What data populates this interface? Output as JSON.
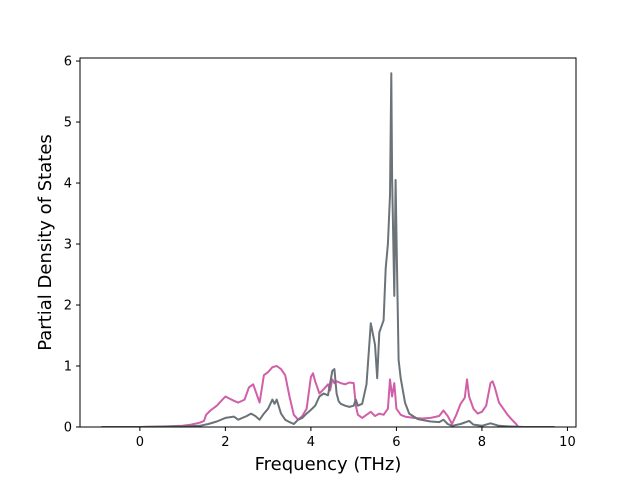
{
  "chart_data": {
    "type": "line",
    "title": "",
    "xlabel": "Frequency (THz)",
    "ylabel": "Partial Density of States",
    "xlim": [
      -1.4,
      10.2
    ],
    "ylim": [
      0,
      6.05
    ],
    "xticks": [
      0,
      2,
      4,
      6,
      8,
      10
    ],
    "yticks": [
      0,
      1,
      2,
      3,
      4,
      5,
      6
    ],
    "grid": false,
    "legend": "none",
    "series": [
      {
        "color": "#d15fa8",
        "x": [
          -0.9,
          0.0,
          0.6,
          1.0,
          1.2,
          1.4,
          1.5,
          1.55,
          1.65,
          1.8,
          2.0,
          2.2,
          2.3,
          2.45,
          2.55,
          2.65,
          2.8,
          2.9,
          3.0,
          3.1,
          3.2,
          3.3,
          3.4,
          3.5,
          3.6,
          3.7,
          3.8,
          3.9,
          4.0,
          4.05,
          4.1,
          4.2,
          4.3,
          4.4,
          4.45,
          4.5,
          4.55,
          4.6,
          4.7,
          4.8,
          4.9,
          5.0,
          5.05,
          5.1,
          5.2,
          5.3,
          5.4,
          5.5,
          5.6,
          5.7,
          5.8,
          5.85,
          5.9,
          5.95,
          6.0,
          6.1,
          6.2,
          6.4,
          6.6,
          6.8,
          7.0,
          7.1,
          7.2,
          7.3,
          7.4,
          7.5,
          7.6,
          7.65,
          7.7,
          7.8,
          7.9,
          8.0,
          8.1,
          8.2,
          8.25,
          8.3,
          8.4,
          8.5,
          8.6,
          8.7,
          8.8,
          8.85
        ],
        "y": [
          0.0,
          0.0,
          0.01,
          0.02,
          0.04,
          0.07,
          0.1,
          0.2,
          0.27,
          0.35,
          0.5,
          0.43,
          0.4,
          0.45,
          0.65,
          0.7,
          0.4,
          0.85,
          0.9,
          0.98,
          1.0,
          0.95,
          0.85,
          0.5,
          0.2,
          0.12,
          0.18,
          0.3,
          0.82,
          0.88,
          0.75,
          0.55,
          0.62,
          0.7,
          0.6,
          0.78,
          0.72,
          0.75,
          0.72,
          0.7,
          0.73,
          0.72,
          0.35,
          0.2,
          0.15,
          0.2,
          0.25,
          0.18,
          0.22,
          0.2,
          0.3,
          0.78,
          0.5,
          0.72,
          0.3,
          0.2,
          0.17,
          0.15,
          0.14,
          0.15,
          0.18,
          0.27,
          0.18,
          0.05,
          0.2,
          0.38,
          0.48,
          0.78,
          0.5,
          0.3,
          0.22,
          0.25,
          0.35,
          0.72,
          0.75,
          0.65,
          0.4,
          0.3,
          0.2,
          0.12,
          0.05,
          0.0
        ]
      },
      {
        "color": "#6b7378",
        "x": [
          -0.9,
          0.0,
          1.0,
          1.4,
          1.6,
          1.8,
          2.0,
          2.2,
          2.3,
          2.5,
          2.6,
          2.7,
          2.8,
          2.9,
          3.0,
          3.1,
          3.15,
          3.2,
          3.3,
          3.4,
          3.5,
          3.6,
          3.7,
          3.8,
          3.9,
          4.0,
          4.1,
          4.2,
          4.3,
          4.4,
          4.5,
          4.55,
          4.6,
          4.65,
          4.7,
          4.8,
          4.9,
          5.0,
          5.05,
          5.1,
          5.2,
          5.3,
          5.4,
          5.5,
          5.55,
          5.6,
          5.7,
          5.75,
          5.8,
          5.85,
          5.88,
          5.9,
          5.95,
          5.98,
          6.0,
          6.05,
          6.1,
          6.2,
          6.3,
          6.5,
          6.8,
          7.0,
          7.1,
          7.2,
          7.3,
          7.5,
          7.7,
          7.8,
          8.0,
          8.2,
          8.4,
          8.6,
          9.0,
          9.7
        ],
        "y": [
          0.0,
          0.0,
          0.01,
          0.02,
          0.05,
          0.09,
          0.15,
          0.17,
          0.12,
          0.18,
          0.22,
          0.18,
          0.12,
          0.22,
          0.3,
          0.45,
          0.38,
          0.45,
          0.22,
          0.12,
          0.08,
          0.05,
          0.12,
          0.15,
          0.22,
          0.28,
          0.35,
          0.5,
          0.55,
          0.52,
          0.92,
          0.95,
          0.55,
          0.42,
          0.38,
          0.35,
          0.33,
          0.35,
          0.45,
          0.35,
          0.38,
          0.7,
          1.7,
          1.35,
          0.8,
          1.55,
          1.75,
          2.6,
          3.0,
          3.8,
          5.8,
          4.1,
          2.15,
          4.05,
          3.2,
          1.1,
          0.8,
          0.4,
          0.22,
          0.13,
          0.09,
          0.08,
          0.12,
          0.05,
          0.02,
          0.05,
          0.1,
          0.04,
          0.02,
          0.06,
          0.02,
          0.01,
          0.0,
          0.0
        ]
      }
    ]
  }
}
